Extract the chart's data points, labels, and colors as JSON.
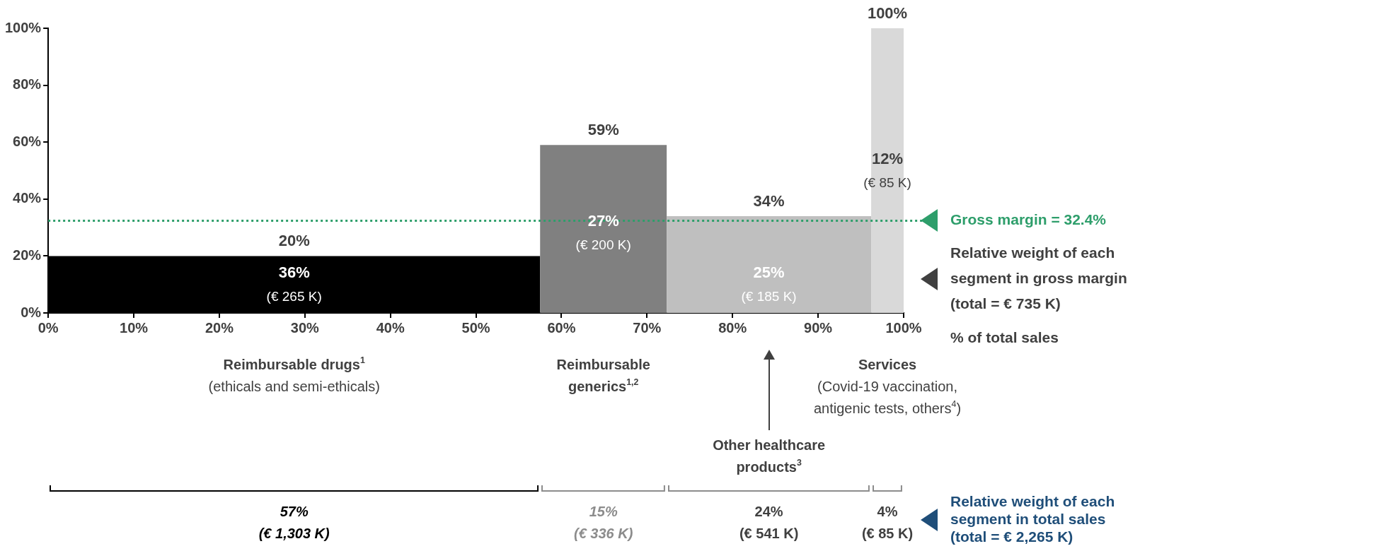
{
  "chart_data": {
    "type": "histogram",
    "bins": [
      0,
      57.5,
      72.3,
      96.2,
      100
    ],
    "values": [
      20,
      59,
      34,
      100
    ],
    "colors": [
      "#000000",
      "#808080",
      "#bfbfbf",
      "#d9d9d9"
    ],
    "value_labels": [
      "20%",
      "59%",
      "34%",
      "100%"
    ],
    "xlabel": "% of total sales",
    "xlim": [
      0,
      100
    ],
    "xticks": [
      {
        "value": 0,
        "label": "0%"
      },
      {
        "value": 10,
        "label": "10%"
      },
      {
        "value": 20,
        "label": "20%"
      },
      {
        "value": 30,
        "label": "30%"
      },
      {
        "value": 40,
        "label": "40%"
      },
      {
        "value": 50,
        "label": "50%"
      },
      {
        "value": 60,
        "label": "60%"
      },
      {
        "value": 70,
        "label": "70%"
      },
      {
        "value": 80,
        "label": "80%"
      },
      {
        "value": 90,
        "label": "90%"
      },
      {
        "value": 100,
        "label": "100%"
      }
    ],
    "ylim": [
      0,
      100
    ],
    "yticks": [
      {
        "value": 0,
        "label": "0%"
      },
      {
        "value": 20,
        "label": "20%"
      },
      {
        "value": 40,
        "label": "40%"
      },
      {
        "value": 60,
        "label": "60%"
      },
      {
        "value": 80,
        "label": "80%"
      },
      {
        "value": 100,
        "label": "100%"
      }
    ],
    "grid": false,
    "ref_lines": [
      {
        "axis": "y",
        "value": 32.4,
        "label": "Gross margin = 32.4%",
        "color": "#2e9e6b",
        "line_style": "dotted"
      }
    ],
    "annotations": [
      "36%\n(€ 265 K)",
      "27%\n(€ 200 K)",
      "25%\n(€ 185 K)",
      "12%\n(€ 85 K)",
      "Reimbursable drugs$^{1}$\n(ethicals and semi-ethicals)",
      "Reimbursable\ngenerics$^{1,2}$",
      "Services\n(Covid-19 vaccination,\nantigenic tests, others$^{4}$)",
      "Other healthcare\nproducts$^{3}$",
      "57%\n(€ 1,303 K)",
      "15%\n(€ 336 K)",
      "24%\n(€ 541 K)",
      "4%\n(€ 85 K)",
      "Relative weight of each\nsegment in gross margin\n(total = € 735 K)",
      "Relative weight of each\nsegment in total sales\n(total = € 2,265 K)"
    ]
  }
}
